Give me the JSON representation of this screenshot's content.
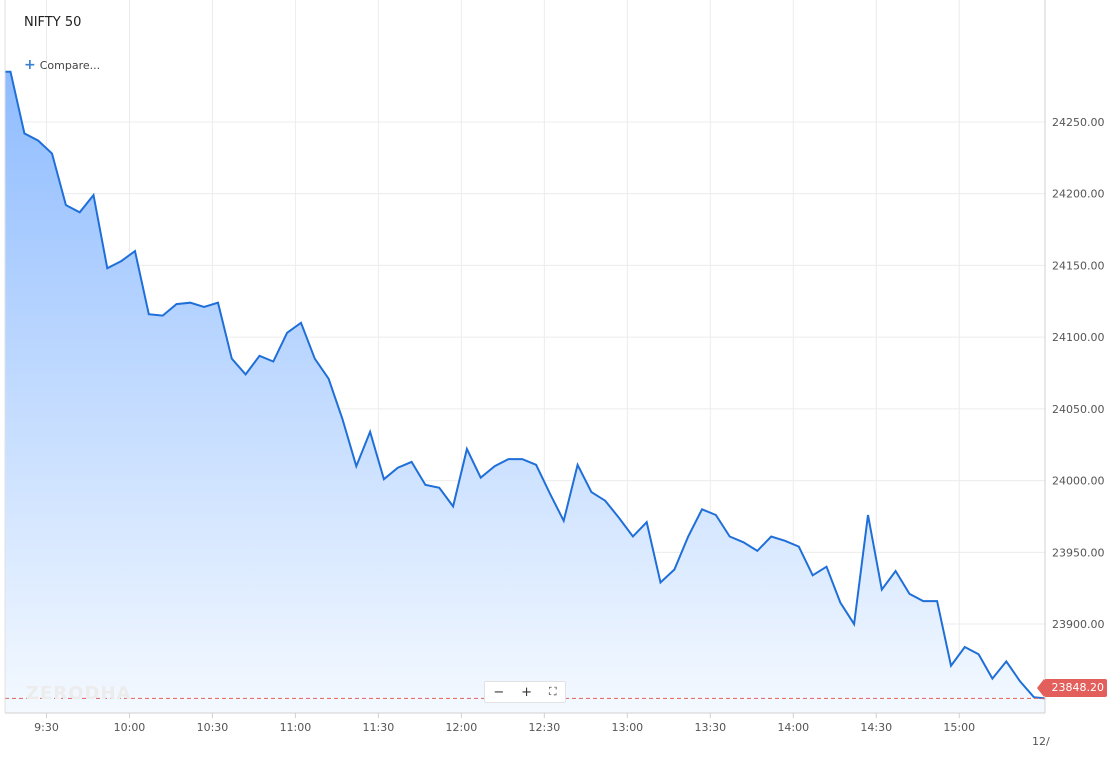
{
  "header": {
    "symbol": "NIFTY 50",
    "compare_label": "Compare..."
  },
  "toolbar": {
    "zoom_out_label": "−",
    "zoom_in_label": "+",
    "fullscreen_label": "⛶"
  },
  "watermark": "ZERODHA",
  "last_price_label": "23848.20",
  "colors": {
    "line": "#1f6fd8",
    "fill_top": "#8fbcff",
    "fill_bottom": "#f4f9ff",
    "last_price": "#e25f5b"
  },
  "chart_data": {
    "type": "area",
    "title": "NIFTY 50",
    "xlabel": "",
    "ylabel": "",
    "ylim": [
      23838,
      24335
    ],
    "xlim": [
      0,
      376
    ],
    "x_ticks": [
      "9:30",
      "10:00",
      "10:30",
      "11:00",
      "11:30",
      "12:00",
      "12:30",
      "13:00",
      "13:30",
      "14:00",
      "14:30",
      "15:00"
    ],
    "x_tick_minutes": [
      15,
      45,
      75,
      105,
      135,
      165,
      195,
      225,
      255,
      285,
      315,
      345
    ],
    "y_ticks": [
      23900,
      23950,
      24000,
      24050,
      24100,
      24150,
      24200,
      24250
    ],
    "y_tick_labels": [
      "23900.00",
      "23950.00",
      "24000.00",
      "24050.00",
      "24100.00",
      "24150.00",
      "24200.00",
      "24250.00"
    ],
    "date_label_partial": "12/",
    "last_price": 23848.2,
    "grid": true,
    "series": [
      {
        "x": [
          0,
          2,
          7,
          12,
          17,
          22,
          27,
          32,
          37,
          42,
          47,
          52,
          57,
          62,
          67,
          72,
          77,
          82,
          87,
          92,
          97,
          102,
          107,
          112,
          117,
          122,
          127,
          132,
          137,
          142,
          147,
          152,
          157,
          162,
          167,
          172,
          177,
          182,
          187,
          192,
          197,
          202,
          207,
          212,
          217,
          222,
          227,
          232,
          237,
          242,
          247,
          252,
          257,
          262,
          267,
          272,
          277,
          282,
          287,
          292,
          297,
          302,
          307,
          312,
          317,
          322,
          327,
          332,
          337,
          342,
          347,
          352,
          357,
          362,
          367,
          372,
          376
        ],
        "values": [
          24285,
          24285,
          24242,
          24237,
          24228,
          24192,
          24187,
          24199,
          24148,
          24153,
          24160,
          24116,
          24115,
          24123,
          24124,
          24121,
          24124,
          24085,
          24074,
          24087,
          24083,
          24103,
          24110,
          24085,
          24071,
          24043,
          24010,
          24034,
          24001,
          24009,
          24013,
          23997,
          23995,
          23982,
          24022,
          24002,
          24010,
          24015,
          24015,
          24011,
          23991,
          23972,
          24011,
          23992,
          23986,
          23974,
          23961,
          23971,
          23929,
          23938,
          23961,
          23980,
          23976,
          23961,
          23957,
          23951,
          23961,
          23958,
          23954,
          23934,
          23940,
          23915,
          23900,
          23976,
          23924,
          23937,
          23921,
          23916,
          23916,
          23871,
          23884,
          23879,
          23862,
          23874,
          23860,
          23849,
          23848.2
        ]
      }
    ]
  }
}
